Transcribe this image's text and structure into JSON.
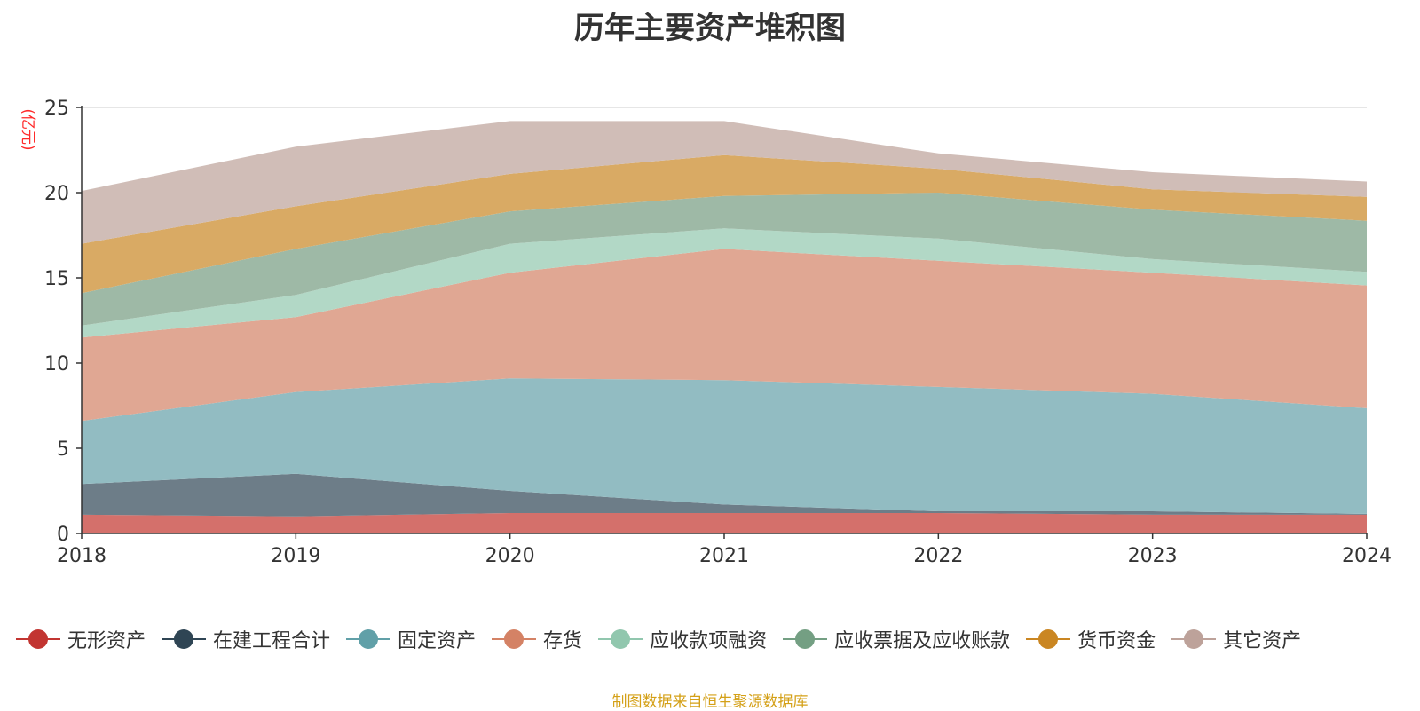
{
  "title": "历年主要资产堆积图",
  "source_note": "制图数据来自恒生聚源数据库",
  "chart_data": {
    "type": "area",
    "stacked": true,
    "title": "历年主要资产堆积图",
    "ylabel": "(亿元)",
    "xlabel": "",
    "x": [
      "2018",
      "2019",
      "2020",
      "2021",
      "2022",
      "2023",
      "2024"
    ],
    "ylim": [
      0,
      25
    ],
    "yticks": [
      0,
      5,
      10,
      15,
      20,
      25
    ],
    "grid": true,
    "legend_position": "bottom",
    "series": [
      {
        "name": "无形资产",
        "color": "#c23531",
        "fill": "#d4706b",
        "values": [
          1.1,
          1.0,
          1.2,
          1.2,
          1.2,
          1.1,
          1.1
        ]
      },
      {
        "name": "在建工程合计",
        "color": "#2f4554",
        "fill": "#6d7d88",
        "values": [
          1.8,
          2.5,
          1.3,
          0.5,
          0.1,
          0.2,
          0.05
        ]
      },
      {
        "name": "固定资产",
        "color": "#61a0a8",
        "fill": "#92bcc2",
        "values": [
          3.7,
          4.8,
          6.6,
          7.3,
          7.3,
          6.9,
          6.2
        ]
      },
      {
        "name": "存货",
        "color": "#d48265",
        "fill": "#e0a793",
        "values": [
          4.9,
          4.4,
          6.2,
          7.7,
          7.4,
          7.1,
          7.2
        ]
      },
      {
        "name": "应收款项融资",
        "color": "#91c7ae",
        "fill": "#b2d8c6",
        "values": [
          0.7,
          1.3,
          1.7,
          1.2,
          1.3,
          0.8,
          0.8
        ]
      },
      {
        "name": "应收票据及应收账款",
        "color": "#749f83",
        "fill": "#9eb9a6",
        "values": [
          1.9,
          2.7,
          1.9,
          1.9,
          2.7,
          2.9,
          3.0
        ]
      },
      {
        "name": "货币资金",
        "color": "#ca8622",
        "fill": "#d9aa64",
        "values": [
          2.9,
          2.5,
          2.2,
          2.4,
          1.4,
          1.2,
          1.4
        ]
      },
      {
        "name": "其它资产",
        "color": "#bda29a",
        "fill": "#d0bdb7",
        "values": [
          3.1,
          3.5,
          3.1,
          2.0,
          0.9,
          1.0,
          0.9
        ]
      }
    ]
  }
}
